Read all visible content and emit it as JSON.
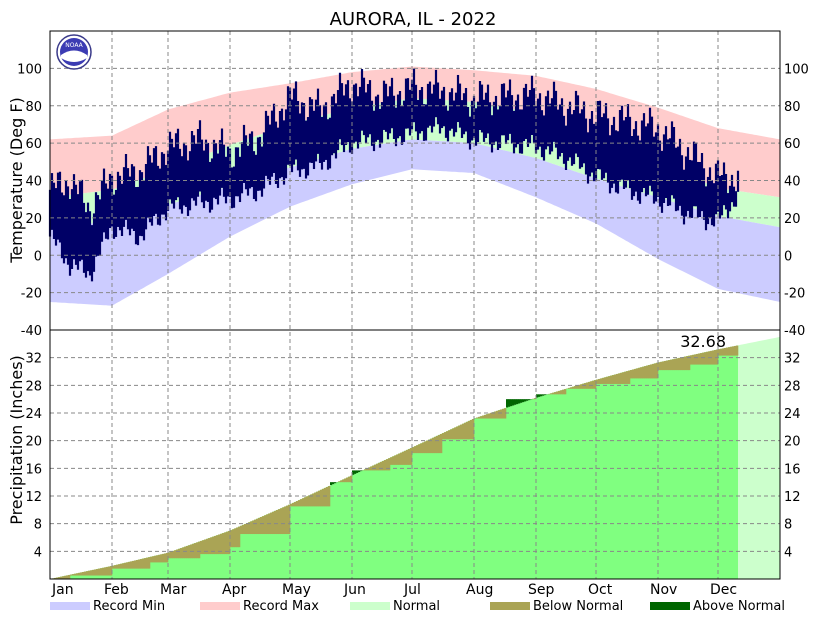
{
  "chart_data": [
    {
      "type": "area",
      "title": "AURORA, IL - 2022",
      "ylabel": "Temperature (Deg F)",
      "ylim": [
        -40,
        120
      ],
      "yticks": [
        -40,
        -20,
        0,
        20,
        40,
        60,
        80,
        100
      ],
      "grid": true,
      "months": [
        "Jan",
        "Feb",
        "Mar",
        "Apr",
        "May",
        "Jun",
        "Jul",
        "Aug",
        "Sep",
        "Oct",
        "Nov",
        "Dec"
      ],
      "normal_high": {
        "days": [
          0,
          31,
          59,
          90,
          120,
          151,
          181,
          212,
          243,
          273,
          304,
          334,
          365
        ],
        "values": [
          31,
          35,
          46,
          59,
          70,
          79,
          84,
          82,
          76,
          63,
          49,
          36,
          31
        ]
      },
      "normal_low": {
        "days": [
          0,
          31,
          59,
          90,
          120,
          151,
          181,
          212,
          243,
          273,
          304,
          334,
          365
        ],
        "values": [
          15,
          18,
          27,
          37,
          47,
          57,
          62,
          60,
          52,
          41,
          31,
          21,
          15
        ]
      },
      "record_max": {
        "days": [
          0,
          31,
          59,
          90,
          120,
          151,
          181,
          212,
          243,
          273,
          304,
          334,
          365
        ],
        "values": [
          62,
          64,
          78,
          87,
          92,
          98,
          101,
          99,
          96,
          89,
          79,
          68,
          62
        ]
      },
      "record_min": {
        "days": [
          0,
          31,
          59,
          90,
          120,
          151,
          181,
          212,
          243,
          273,
          304,
          334,
          365
        ],
        "values": [
          -25,
          -27,
          -10,
          10,
          26,
          38,
          46,
          44,
          31,
          17,
          -2,
          -18,
          -25
        ]
      },
      "observed": {
        "days": [
          0,
          10,
          20,
          31,
          45,
          59,
          75,
          90,
          105,
          120,
          135,
          151,
          166,
          181,
          196,
          212,
          227,
          243,
          258,
          273,
          288,
          304,
          319,
          334,
          344
        ],
        "high": [
          35,
          40,
          25,
          42,
          45,
          58,
          62,
          55,
          64,
          85,
          78,
          92,
          85,
          90,
          88,
          84,
          85,
          86,
          80,
          75,
          72,
          68,
          55,
          42,
          42
        ],
        "low": [
          10,
          -5,
          -10,
          15,
          10,
          25,
          28,
          30,
          35,
          45,
          48,
          60,
          62,
          65,
          68,
          62,
          60,
          58,
          52,
          42,
          35,
          30,
          22,
          18,
          32
        ]
      }
    },
    {
      "type": "area",
      "ylabel": "Precipitation (Inches)",
      "ylim": [
        0,
        36
      ],
      "yticks": [
        4,
        8,
        12,
        16,
        20,
        24,
        28,
        32
      ],
      "grid": true,
      "months": [
        "Jan",
        "Feb",
        "Mar",
        "Apr",
        "May",
        "Jun",
        "Jul",
        "Aug",
        "Sep",
        "Oct",
        "Nov",
        "Dec"
      ],
      "normal": {
        "days": [
          0,
          31,
          59,
          90,
          120,
          151,
          181,
          212,
          243,
          273,
          304,
          334,
          365
        ],
        "values": [
          0,
          1.9,
          3.8,
          7.0,
          10.8,
          15.0,
          19.0,
          23.2,
          26.2,
          28.8,
          31.3,
          33.2,
          35.0
        ]
      },
      "observed": {
        "days": [
          0,
          10,
          31,
          50,
          59,
          75,
          90,
          95,
          120,
          140,
          151,
          170,
          181,
          196,
          212,
          228,
          243,
          258,
          273,
          290,
          304,
          320,
          334,
          344
        ],
        "values": [
          0,
          0.5,
          1.5,
          2.4,
          3.0,
          3.6,
          4.6,
          6.5,
          10.5,
          14.0,
          15.7,
          16.5,
          18.2,
          20.2,
          23.2,
          26.0,
          26.7,
          27.5,
          28.2,
          29.0,
          30.2,
          31.0,
          32.3,
          32.68
        ]
      },
      "total_label": "32.68"
    }
  ],
  "legend": [
    {
      "label": "Record Min",
      "color": "#ccccff"
    },
    {
      "label": "Record Max",
      "color": "#ffcccc"
    },
    {
      "label": "Normal",
      "color": "#ccffcc"
    },
    {
      "label": "Below Normal",
      "color": "#aaa455"
    },
    {
      "label": "Above Normal",
      "color": "#006600"
    }
  ],
  "colors": {
    "observed_temp": "#000066",
    "normal_precip": "#80ff80",
    "normal_precip_future": "#ccffcc"
  },
  "logo": {
    "text": "NOAA"
  }
}
